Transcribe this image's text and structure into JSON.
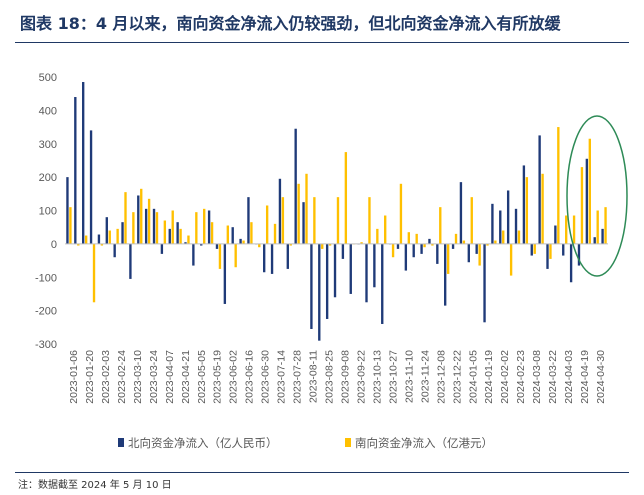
{
  "figure": {
    "title": "图表 18：4 月以来，南向资金净流入仍较强劲，但北向资金净流入有所放缓",
    "note": "注：数据截至 2024 年 5 月 10 日"
  },
  "chart_data": {
    "type": "bar",
    "ylim": [
      -300,
      500
    ],
    "yticks": [
      -300,
      -200,
      -100,
      0,
      100,
      200,
      300,
      400,
      500
    ],
    "grid": false,
    "legend_position": "bottom",
    "colors": {
      "north": "#1f3a78",
      "south": "#ffc000",
      "ellipse": "#2e8b57",
      "axis": "#bfbfbf",
      "text": "#595959"
    },
    "x_tick_labels": [
      "2023-01-06",
      "2023-01-20",
      "2023-02-03",
      "2023-02-24",
      "2023-03-10",
      "2023-03-24",
      "2023-04-07",
      "2023-04-21",
      "2023-05-05",
      "2023-05-19",
      "2023-06-02",
      "2023-06-16",
      "2023-06-30",
      "2023-07-14",
      "2023-07-28",
      "2023-08-11",
      "2023-08-25",
      "2023-09-08",
      "2023-09-22",
      "2023-10-13",
      "2023-10-27",
      "2023-11-10",
      "2023-11-24",
      "2023-12-08",
      "2023-12-22",
      "2024-01-05",
      "2024-01-19",
      "2024-02-02",
      "2024-02-23",
      "2024-03-08",
      "2024-03-22",
      "2024-04-03",
      "2024-04-19",
      "2024-04-30"
    ],
    "series": [
      {
        "name": "北向资金净流入（亿人民币）",
        "values": [
          200,
          440,
          485,
          340,
          28,
          80,
          -40,
          65,
          -105,
          145,
          105,
          105,
          -30,
          45,
          65,
          5,
          -65,
          -5,
          100,
          -15,
          -180,
          50,
          15,
          140,
          0,
          -85,
          -90,
          195,
          -75,
          345,
          125,
          -255,
          -290,
          -225,
          -160,
          -45,
          -150,
          0,
          -175,
          -130,
          -240,
          0,
          -15,
          -80,
          -40,
          -30,
          15,
          -60,
          -185,
          -15,
          185,
          -55,
          -30,
          -235,
          120,
          100,
          160,
          105,
          235,
          -35,
          325,
          -75,
          55,
          -35,
          -115,
          -65,
          255,
          20,
          45
        ]
      },
      {
        "name": "南向资金净流入（亿港元）",
        "values": [
          110,
          -5,
          25,
          -175,
          -5,
          40,
          45,
          155,
          95,
          165,
          135,
          95,
          70,
          100,
          45,
          25,
          95,
          105,
          65,
          -75,
          55,
          -70,
          10,
          65,
          -10,
          115,
          60,
          140,
          -5,
          180,
          210,
          140,
          -15,
          -5,
          140,
          275,
          0,
          5,
          140,
          45,
          85,
          -40,
          180,
          35,
          30,
          -10,
          -5,
          110,
          -90,
          30,
          10,
          140,
          -65,
          -5,
          10,
          40,
          -95,
          40,
          200,
          -30,
          210,
          -45,
          350,
          85,
          85,
          230,
          315,
          100,
          110
        ]
      }
    ]
  }
}
